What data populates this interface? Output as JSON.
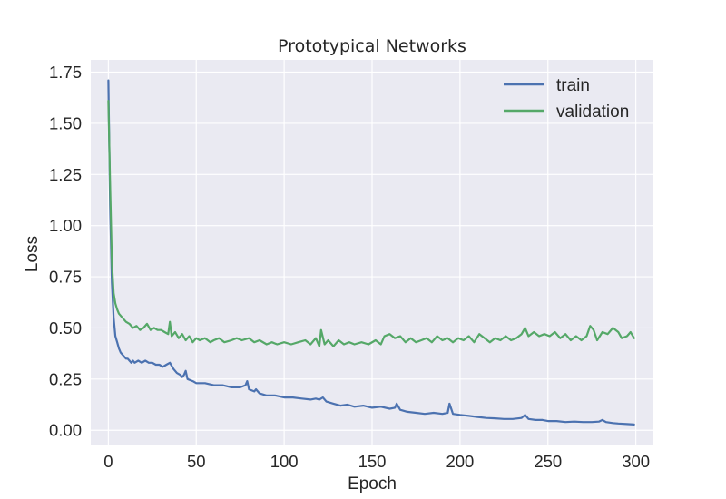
{
  "chart_data": {
    "type": "line",
    "title": "Prototypical Networks",
    "xlabel": "Epoch",
    "ylabel": "Loss",
    "xlim": [
      -10,
      310
    ],
    "ylim": [
      -0.07,
      1.81
    ],
    "xticks": [
      0,
      50,
      100,
      150,
      200,
      250,
      300
    ],
    "yticks": [
      0.0,
      0.25,
      0.5,
      0.75,
      1.0,
      1.25,
      1.5,
      1.75
    ],
    "xtick_labels": [
      "0",
      "50",
      "100",
      "150",
      "200",
      "250",
      "300"
    ],
    "ytick_labels": [
      "0.00",
      "0.25",
      "0.50",
      "0.75",
      "1.00",
      "1.25",
      "1.50",
      "1.75"
    ],
    "grid": true,
    "legend": "top-right",
    "series": [
      {
        "name": "train",
        "color": "#4c72b0",
        "points": [
          [
            0,
            1.71
          ],
          [
            1,
            1.1
          ],
          [
            2,
            0.72
          ],
          [
            3,
            0.55
          ],
          [
            4,
            0.46
          ],
          [
            5,
            0.43
          ],
          [
            6,
            0.4
          ],
          [
            7,
            0.38
          ],
          [
            8,
            0.37
          ],
          [
            9,
            0.36
          ],
          [
            10,
            0.35
          ],
          [
            11,
            0.35
          ],
          [
            12,
            0.34
          ],
          [
            13,
            0.33
          ],
          [
            14,
            0.34
          ],
          [
            15,
            0.33
          ],
          [
            17,
            0.34
          ],
          [
            19,
            0.33
          ],
          [
            21,
            0.34
          ],
          [
            23,
            0.33
          ],
          [
            25,
            0.33
          ],
          [
            27,
            0.32
          ],
          [
            29,
            0.32
          ],
          [
            31,
            0.31
          ],
          [
            33,
            0.32
          ],
          [
            35,
            0.33
          ],
          [
            37,
            0.3
          ],
          [
            39,
            0.28
          ],
          [
            41,
            0.27
          ],
          [
            42,
            0.26
          ],
          [
            43,
            0.27
          ],
          [
            44,
            0.29
          ],
          [
            45,
            0.25
          ],
          [
            48,
            0.24
          ],
          [
            50,
            0.23
          ],
          [
            55,
            0.23
          ],
          [
            60,
            0.22
          ],
          [
            65,
            0.22
          ],
          [
            70,
            0.21
          ],
          [
            75,
            0.21
          ],
          [
            78,
            0.22
          ],
          [
            79,
            0.24
          ],
          [
            80,
            0.2
          ],
          [
            83,
            0.19
          ],
          [
            84,
            0.2
          ],
          [
            86,
            0.18
          ],
          [
            90,
            0.17
          ],
          [
            95,
            0.17
          ],
          [
            100,
            0.16
          ],
          [
            105,
            0.16
          ],
          [
            110,
            0.155
          ],
          [
            115,
            0.15
          ],
          [
            118,
            0.155
          ],
          [
            120,
            0.15
          ],
          [
            122,
            0.16
          ],
          [
            124,
            0.14
          ],
          [
            128,
            0.13
          ],
          [
            132,
            0.12
          ],
          [
            136,
            0.125
          ],
          [
            140,
            0.115
          ],
          [
            145,
            0.12
          ],
          [
            150,
            0.11
          ],
          [
            155,
            0.115
          ],
          [
            160,
            0.105
          ],
          [
            163,
            0.11
          ],
          [
            164,
            0.13
          ],
          [
            166,
            0.1
          ],
          [
            170,
            0.09
          ],
          [
            175,
            0.085
          ],
          [
            180,
            0.08
          ],
          [
            185,
            0.085
          ],
          [
            190,
            0.08
          ],
          [
            193,
            0.085
          ],
          [
            194,
            0.13
          ],
          [
            196,
            0.08
          ],
          [
            200,
            0.075
          ],
          [
            205,
            0.07
          ],
          [
            210,
            0.065
          ],
          [
            215,
            0.06
          ],
          [
            220,
            0.058
          ],
          [
            225,
            0.055
          ],
          [
            230,
            0.055
          ],
          [
            235,
            0.06
          ],
          [
            237,
            0.075
          ],
          [
            239,
            0.055
          ],
          [
            243,
            0.05
          ],
          [
            247,
            0.05
          ],
          [
            250,
            0.045
          ],
          [
            255,
            0.045
          ],
          [
            260,
            0.04
          ],
          [
            265,
            0.042
          ],
          [
            270,
            0.04
          ],
          [
            275,
            0.04
          ],
          [
            279,
            0.042
          ],
          [
            281,
            0.05
          ],
          [
            283,
            0.04
          ],
          [
            287,
            0.035
          ],
          [
            290,
            0.033
          ],
          [
            295,
            0.03
          ],
          [
            299,
            0.028
          ]
        ]
      },
      {
        "name": "validation",
        "color": "#55a868",
        "points": [
          [
            0,
            1.61
          ],
          [
            1,
            1.2
          ],
          [
            2,
            0.82
          ],
          [
            3,
            0.67
          ],
          [
            4,
            0.62
          ],
          [
            5,
            0.59
          ],
          [
            6,
            0.57
          ],
          [
            8,
            0.55
          ],
          [
            10,
            0.53
          ],
          [
            12,
            0.52
          ],
          [
            14,
            0.5
          ],
          [
            16,
            0.51
          ],
          [
            18,
            0.49
          ],
          [
            20,
            0.5
          ],
          [
            22,
            0.52
          ],
          [
            24,
            0.49
          ],
          [
            26,
            0.5
          ],
          [
            28,
            0.49
          ],
          [
            30,
            0.49
          ],
          [
            32,
            0.48
          ],
          [
            34,
            0.47
          ],
          [
            35,
            0.53
          ],
          [
            36,
            0.46
          ],
          [
            38,
            0.48
          ],
          [
            40,
            0.45
          ],
          [
            42,
            0.47
          ],
          [
            44,
            0.44
          ],
          [
            46,
            0.46
          ],
          [
            48,
            0.43
          ],
          [
            50,
            0.45
          ],
          [
            52,
            0.44
          ],
          [
            55,
            0.45
          ],
          [
            58,
            0.43
          ],
          [
            60,
            0.44
          ],
          [
            63,
            0.45
          ],
          [
            66,
            0.43
          ],
          [
            70,
            0.44
          ],
          [
            73,
            0.45
          ],
          [
            76,
            0.44
          ],
          [
            80,
            0.45
          ],
          [
            83,
            0.43
          ],
          [
            86,
            0.44
          ],
          [
            90,
            0.42
          ],
          [
            93,
            0.43
          ],
          [
            96,
            0.42
          ],
          [
            100,
            0.43
          ],
          [
            104,
            0.42
          ],
          [
            108,
            0.43
          ],
          [
            112,
            0.44
          ],
          [
            115,
            0.42
          ],
          [
            118,
            0.45
          ],
          [
            120,
            0.41
          ],
          [
            121,
            0.49
          ],
          [
            123,
            0.42
          ],
          [
            125,
            0.44
          ],
          [
            128,
            0.41
          ],
          [
            131,
            0.44
          ],
          [
            134,
            0.42
          ],
          [
            137,
            0.43
          ],
          [
            140,
            0.42
          ],
          [
            144,
            0.43
          ],
          [
            148,
            0.42
          ],
          [
            152,
            0.44
          ],
          [
            155,
            0.42
          ],
          [
            157,
            0.46
          ],
          [
            160,
            0.47
          ],
          [
            163,
            0.45
          ],
          [
            166,
            0.46
          ],
          [
            169,
            0.43
          ],
          [
            172,
            0.45
          ],
          [
            175,
            0.43
          ],
          [
            178,
            0.44
          ],
          [
            181,
            0.45
          ],
          [
            184,
            0.43
          ],
          [
            187,
            0.46
          ],
          [
            190,
            0.44
          ],
          [
            193,
            0.45
          ],
          [
            196,
            0.43
          ],
          [
            199,
            0.45
          ],
          [
            202,
            0.44
          ],
          [
            205,
            0.46
          ],
          [
            208,
            0.43
          ],
          [
            211,
            0.47
          ],
          [
            214,
            0.45
          ],
          [
            217,
            0.43
          ],
          [
            220,
            0.45
          ],
          [
            223,
            0.44
          ],
          [
            226,
            0.46
          ],
          [
            229,
            0.44
          ],
          [
            232,
            0.45
          ],
          [
            235,
            0.47
          ],
          [
            237,
            0.5
          ],
          [
            239,
            0.46
          ],
          [
            242,
            0.48
          ],
          [
            245,
            0.46
          ],
          [
            248,
            0.47
          ],
          [
            251,
            0.46
          ],
          [
            254,
            0.48
          ],
          [
            257,
            0.45
          ],
          [
            260,
            0.47
          ],
          [
            263,
            0.44
          ],
          [
            266,
            0.46
          ],
          [
            269,
            0.44
          ],
          [
            272,
            0.46
          ],
          [
            274,
            0.51
          ],
          [
            276,
            0.49
          ],
          [
            278,
            0.44
          ],
          [
            281,
            0.48
          ],
          [
            284,
            0.47
          ],
          [
            287,
            0.5
          ],
          [
            290,
            0.48
          ],
          [
            292,
            0.45
          ],
          [
            295,
            0.46
          ],
          [
            297,
            0.48
          ],
          [
            299,
            0.45
          ]
        ]
      }
    ]
  }
}
